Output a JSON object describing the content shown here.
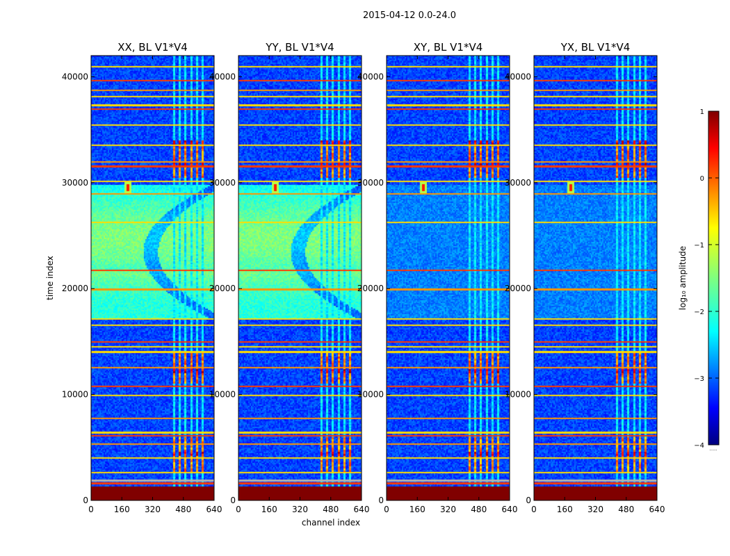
{
  "chart_data": {
    "type": "heatmap",
    "suptitle": "2015-04-12 0.0-24.0",
    "xlabel": "channel index",
    "ylabel": "time index",
    "xlim": [
      0,
      640
    ],
    "ylim": [
      0,
      42000
    ],
    "xticks": [
      0,
      160,
      320,
      480,
      640
    ],
    "yticks": [
      0,
      10000,
      20000,
      30000,
      40000
    ],
    "panels": [
      {
        "title": "XX, BL V1*V4",
        "pol": "XX",
        "arc": true
      },
      {
        "title": "YY, BL V1*V4",
        "pol": "YY",
        "arc": true
      },
      {
        "title": "XY, BL V1*V4",
        "pol": "XY",
        "arc": false
      },
      {
        "title": "YX, BL V1*V4",
        "pol": "YX",
        "arc": false
      }
    ],
    "colorbar": {
      "label": "log₁₀ amplitude",
      "range": [
        -4,
        1
      ],
      "ticks": [
        1,
        0,
        -1,
        -2,
        -3,
        -4
      ],
      "colormap": "jet",
      "extend_label": "......"
    },
    "features": {
      "rfi_channel_range": [
        420,
        595
      ],
      "saturated_time_range": [
        0,
        1300
      ],
      "rfi_source_channel": 190,
      "rfi_source_time": 29500,
      "flagged_times": [
        1700,
        2700,
        4100,
        5400,
        6200,
        6500,
        7800,
        10000,
        10800,
        12600,
        14100,
        14600,
        15000,
        16600,
        17200,
        20000,
        21800,
        26300,
        29000,
        30200,
        31600,
        32000,
        33600,
        35500,
        37000,
        37400,
        38200,
        38800,
        39700,
        41000
      ],
      "rfi_blocks": [
        {
          "t": [
            2600,
            6000
          ],
          "level": 0.1
        },
        {
          "t": [
            11000,
            14000
          ],
          "level": 0.2
        },
        {
          "t": [
            30500,
            34000
          ],
          "level": 0.2
        }
      ]
    }
  }
}
